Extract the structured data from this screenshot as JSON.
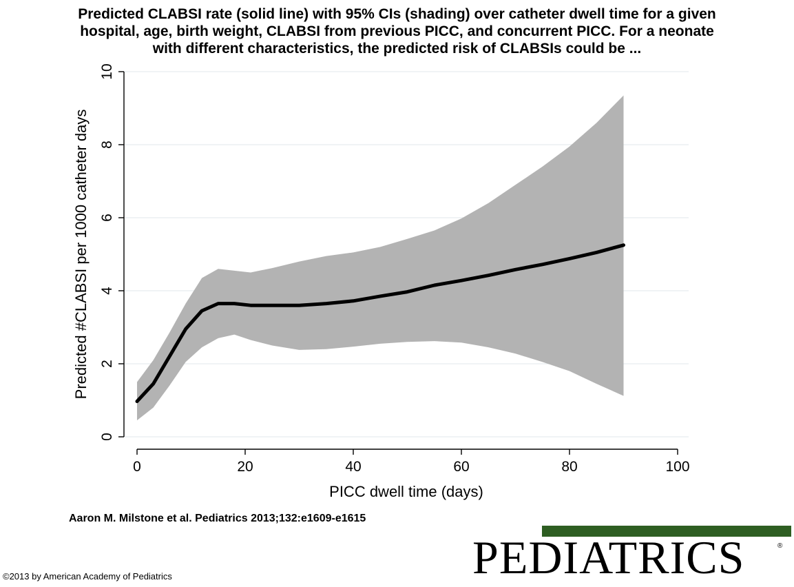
{
  "title_lines": [
    "Predicted CLABSI rate (solid line) with 95% CIs (shading) over catheter dwell time for a given",
    "hospital, age, birth weight, CLABSI from previous PICC, and concurrent PICC. For a neonate",
    "with different characteristics, the predicted risk of CLABSIs could be ..."
  ],
  "citation": "Aaron M. Milstone et al. Pediatrics 2013;132:e1609-e1615",
  "copyright": "©2013 by American Academy of Pediatrics",
  "logo": {
    "text": "PEDIATRICS",
    "registered": "®",
    "bar_color": "#2e5e22"
  },
  "chart_data": {
    "type": "area",
    "xlabel": "PICC dwell time (days)",
    "ylabel": "Predicted #CLABSI per 1000 catheter days",
    "xlim": [
      0,
      100
    ],
    "ylim": [
      0,
      10
    ],
    "xticks": [
      0,
      20,
      40,
      60,
      80,
      100
    ],
    "yticks": [
      0,
      2,
      4,
      6,
      8,
      10
    ],
    "grid": true,
    "line_color": "#000000",
    "band_color": "#b3b3b3",
    "x": [
      0,
      3,
      6,
      9,
      12,
      15,
      18,
      21,
      25,
      30,
      35,
      40,
      45,
      50,
      55,
      60,
      65,
      70,
      75,
      80,
      85,
      90
    ],
    "estimate": [
      0.97,
      1.45,
      2.2,
      2.95,
      3.45,
      3.65,
      3.65,
      3.6,
      3.6,
      3.6,
      3.65,
      3.72,
      3.85,
      3.97,
      4.15,
      4.28,
      4.42,
      4.58,
      4.72,
      4.88,
      5.05,
      5.25
    ],
    "lower": [
      0.45,
      0.8,
      1.4,
      2.05,
      2.45,
      2.7,
      2.8,
      2.65,
      2.5,
      2.38,
      2.4,
      2.47,
      2.55,
      2.6,
      2.62,
      2.58,
      2.45,
      2.28,
      2.05,
      1.8,
      1.45,
      1.12
    ],
    "upper": [
      1.5,
      2.1,
      2.85,
      3.65,
      4.35,
      4.6,
      4.55,
      4.5,
      4.62,
      4.8,
      4.95,
      5.05,
      5.2,
      5.42,
      5.65,
      5.98,
      6.4,
      6.9,
      7.4,
      7.95,
      8.6,
      9.35
    ]
  }
}
